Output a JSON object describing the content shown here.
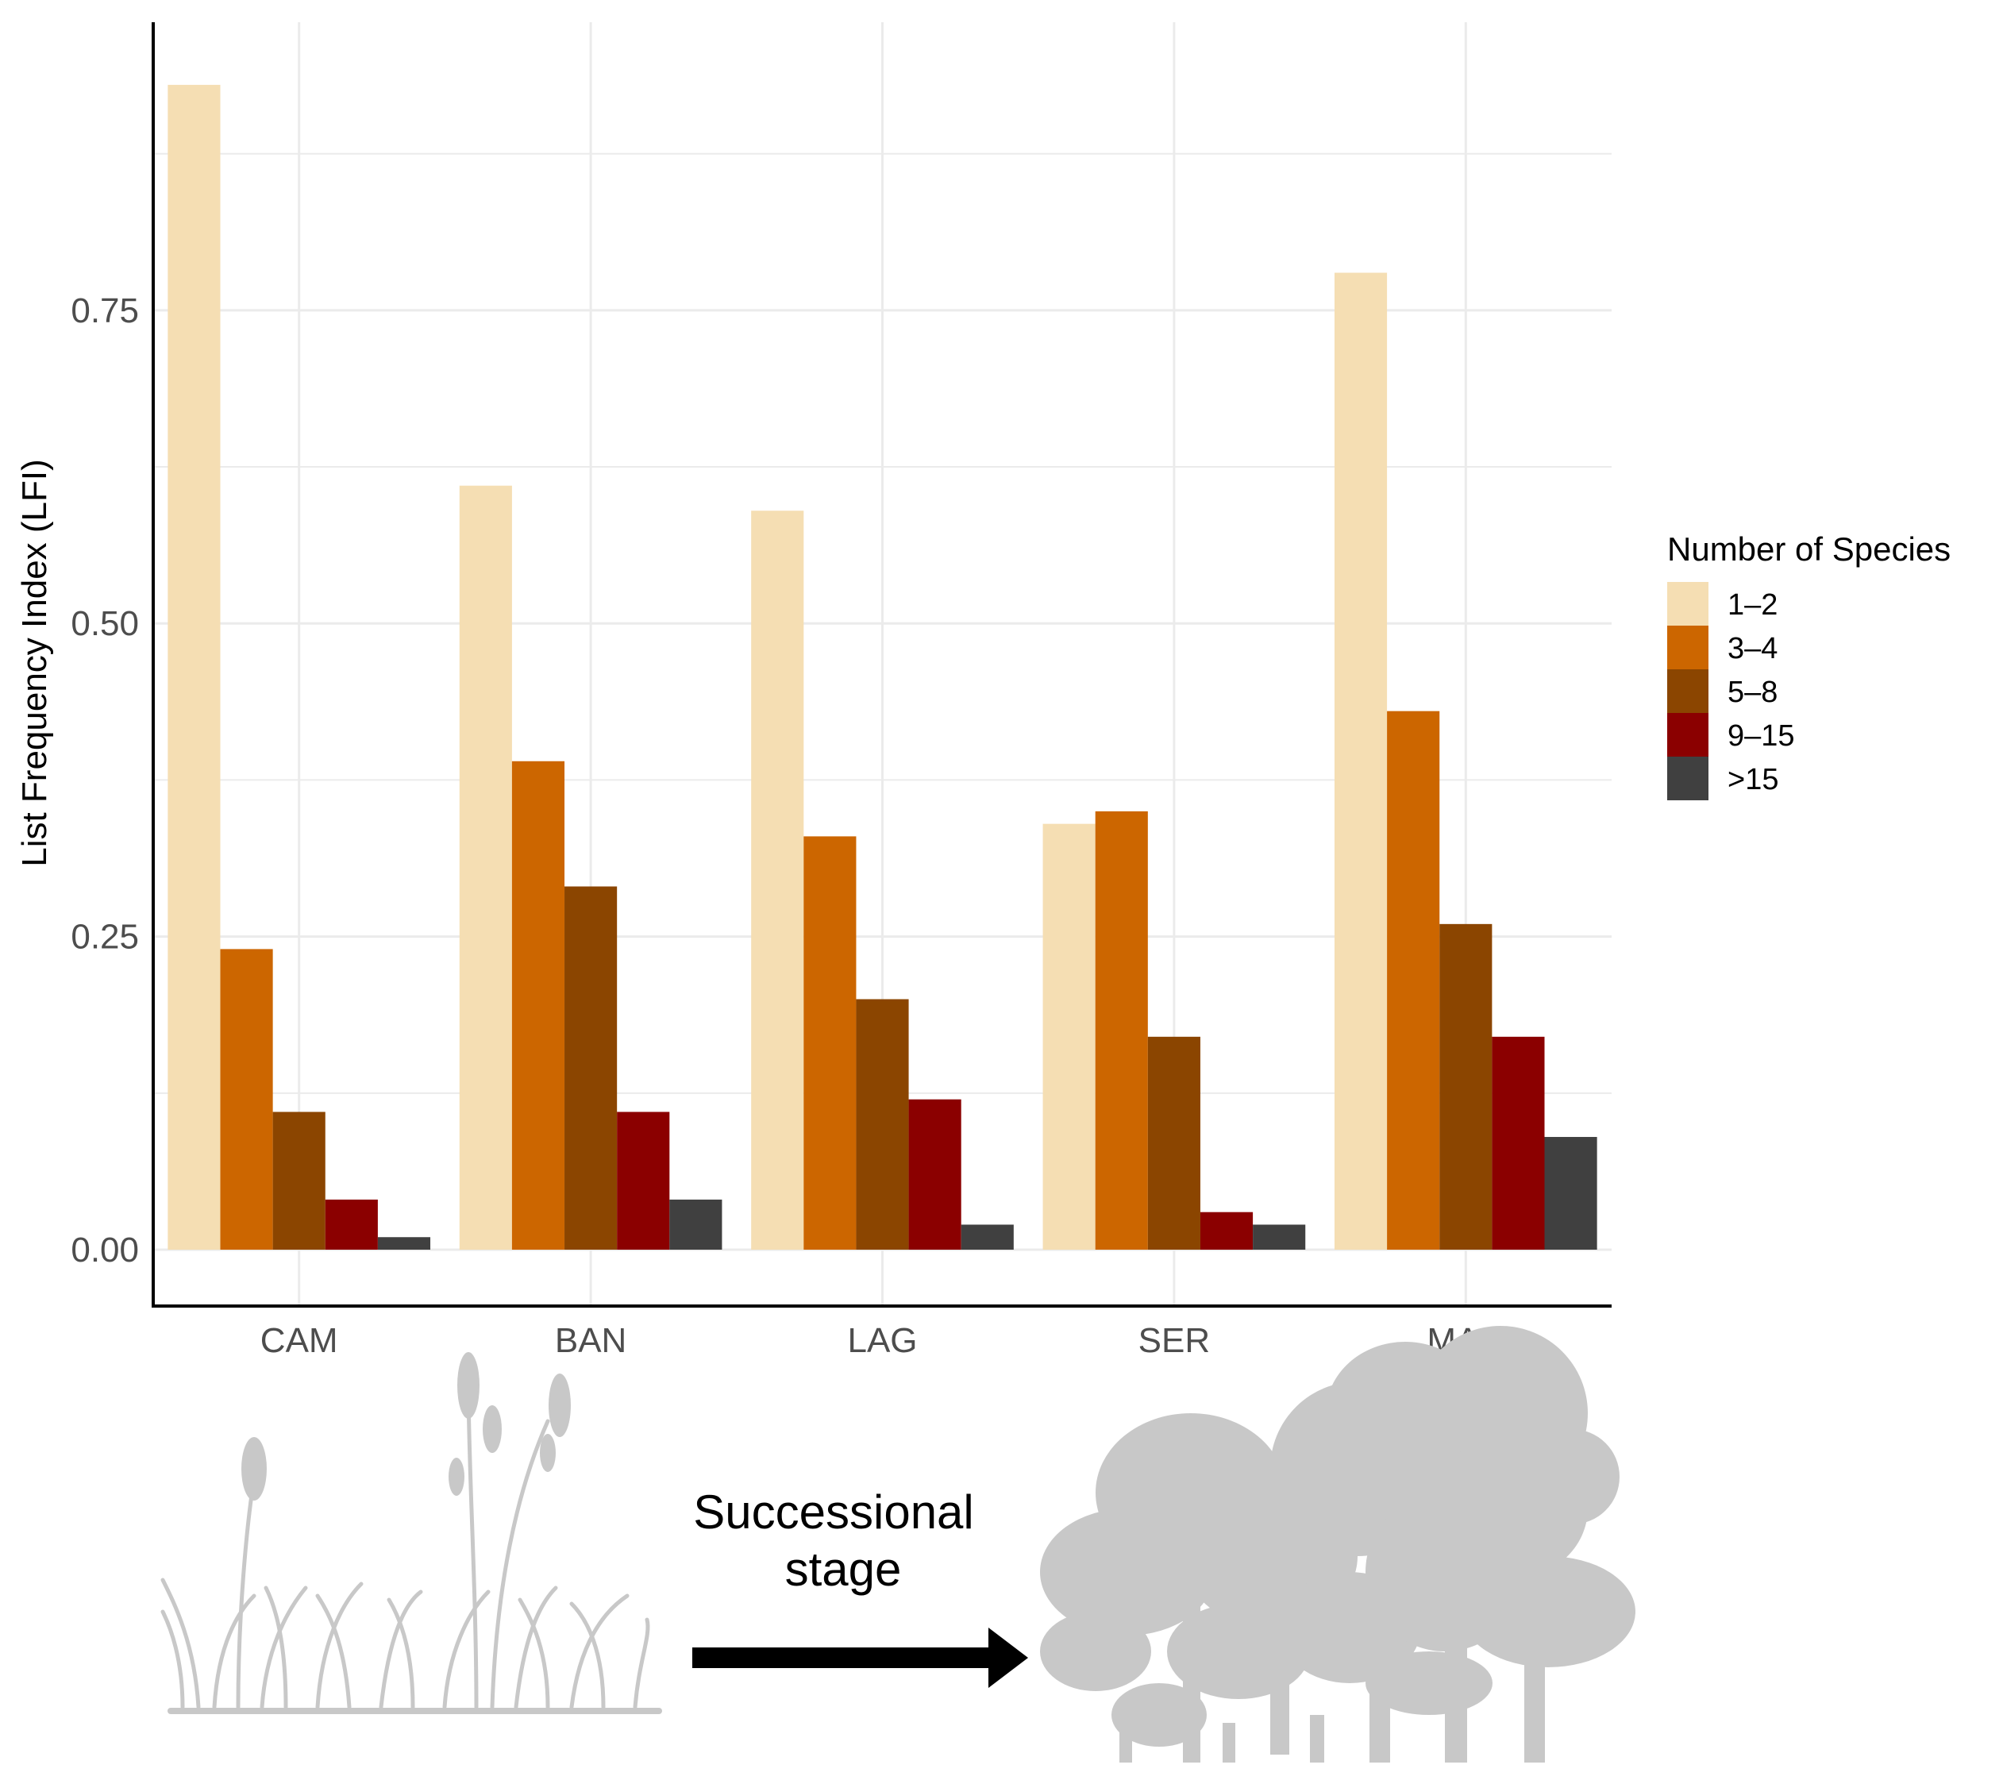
{
  "chart_data": {
    "type": "bar",
    "title": "",
    "xlabel": "",
    "ylabel": "List Frequency Index (LFI)",
    "ylim": [
      -0.045,
      0.98
    ],
    "yticks": [
      0.0,
      0.25,
      0.5,
      0.75
    ],
    "ytick_labels": [
      "0.00",
      "0.25",
      "0.50",
      "0.75"
    ],
    "grid": true,
    "categories": [
      "CAM",
      "BAN",
      "LAG",
      "SER",
      "MAC"
    ],
    "legend_title": "Number of Species",
    "legend_position": "right",
    "series": [
      {
        "name": "1–2",
        "color": "#F5DEB3",
        "values": [
          0.93,
          0.61,
          0.59,
          0.34,
          0.78
        ]
      },
      {
        "name": "3–4",
        "color": "#CC6600",
        "values": [
          0.24,
          0.39,
          0.33,
          0.35,
          0.43
        ]
      },
      {
        "name": "5–8",
        "color": "#8B4500",
        "values": [
          0.11,
          0.29,
          0.2,
          0.17,
          0.26
        ]
      },
      {
        "name": "9–15",
        "color": "#8B0000",
        "values": [
          0.04,
          0.11,
          0.12,
          0.03,
          0.17
        ]
      },
      {
        "name": ">15",
        "color": "#404040",
        "values": [
          0.01,
          0.04,
          0.02,
          0.02,
          0.09
        ]
      }
    ]
  },
  "caption": {
    "line1": "Successional",
    "line2": "stage"
  },
  "illustrations": {
    "left": "grass-icon",
    "right": "forest-trees-icon",
    "arrow": "right-arrow-icon"
  },
  "colors": {
    "illustration": "#C8C8C8",
    "grid": "#EBEBEB"
  }
}
